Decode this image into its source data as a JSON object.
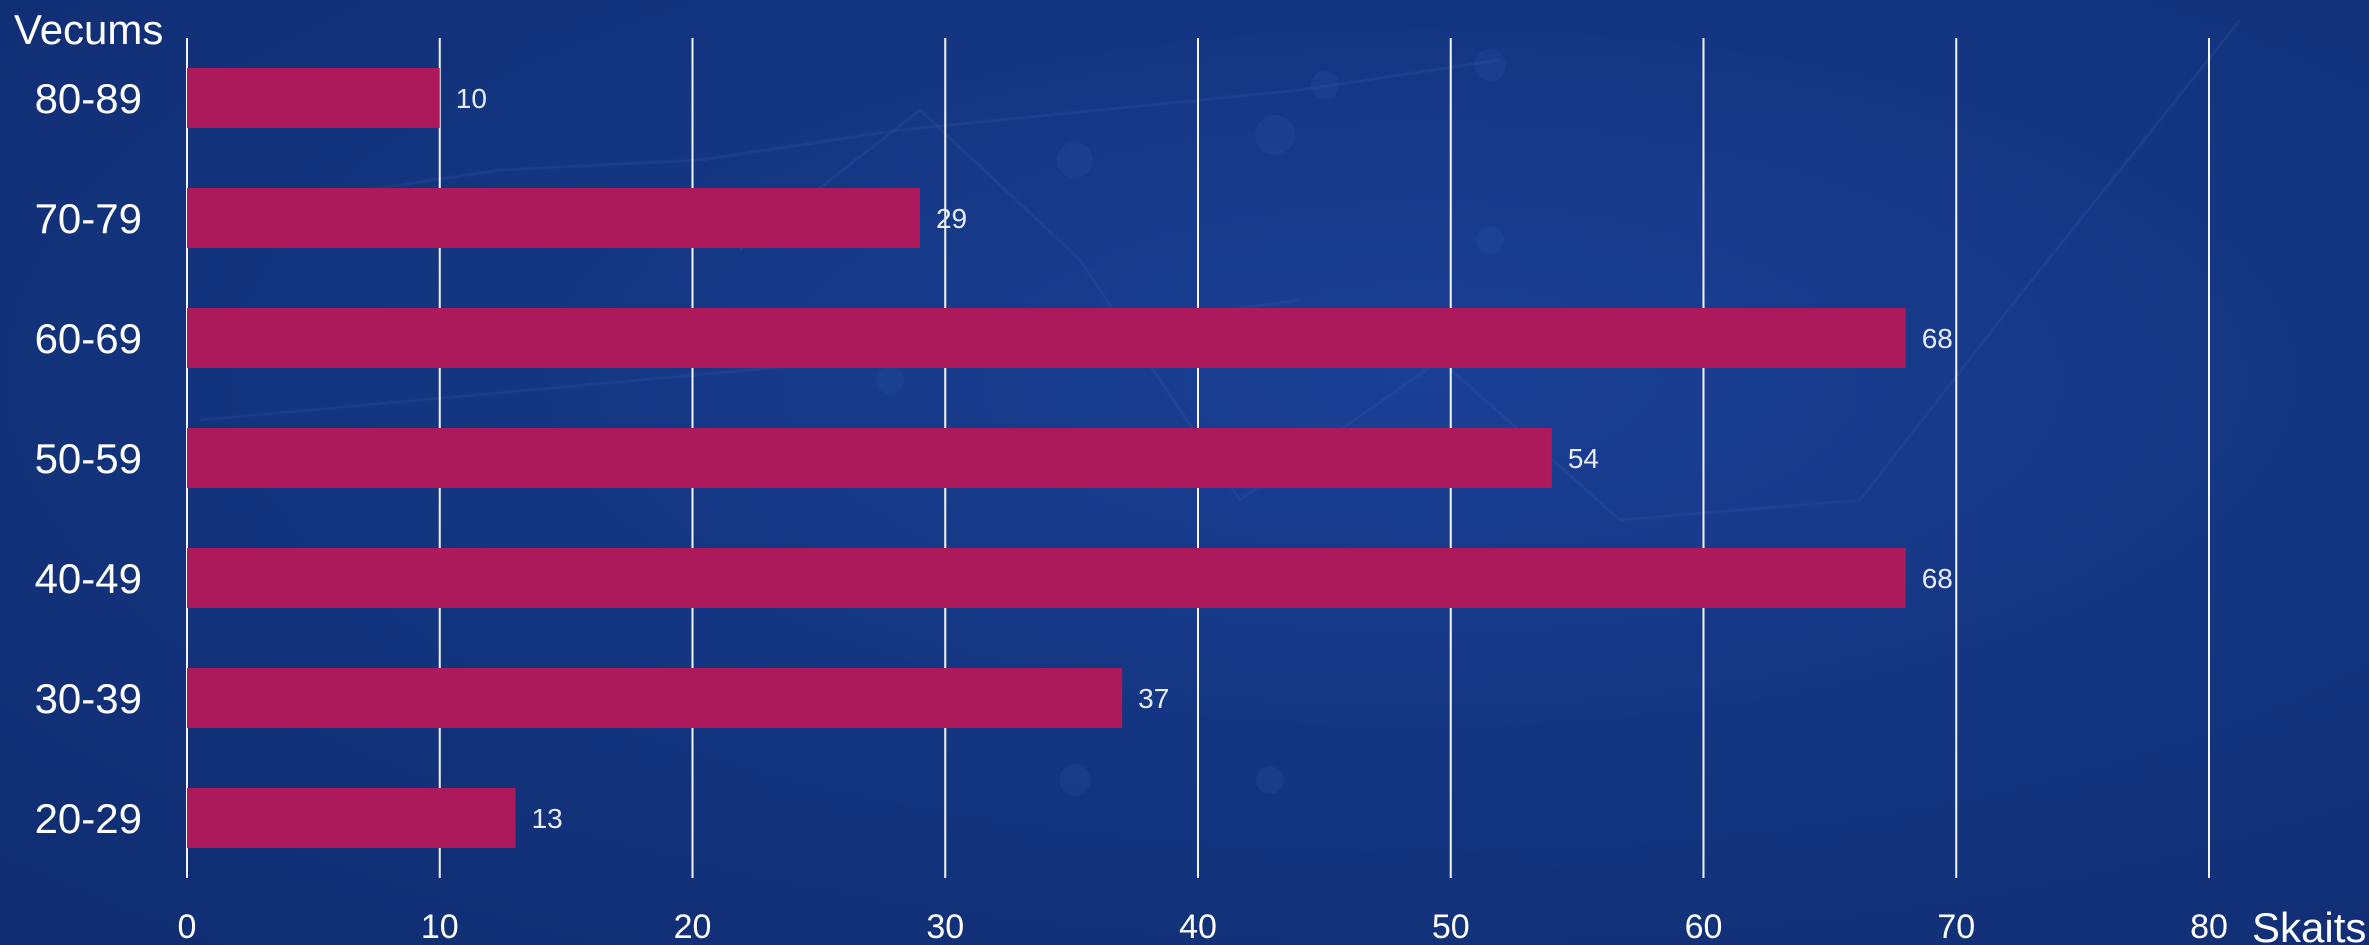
{
  "colors": {
    "bar": "#ad1a5c",
    "grid": "#ffffff",
    "text": "#ffffff"
  },
  "chart_data": {
    "type": "bar",
    "orientation": "horizontal",
    "title": "",
    "ylabel": "Vecums",
    "xlabel": "Skaits",
    "categories": [
      "80-89",
      "70-79",
      "60-69",
      "50-59",
      "40-49",
      "30-39",
      "20-29"
    ],
    "values": [
      10,
      29,
      68,
      54,
      68,
      37,
      13
    ],
    "xlim": [
      0,
      80
    ],
    "xticks": [
      0,
      10,
      20,
      30,
      40,
      50,
      60,
      70,
      80
    ],
    "grid": "vertical",
    "data_labels": true,
    "legend": "none"
  }
}
